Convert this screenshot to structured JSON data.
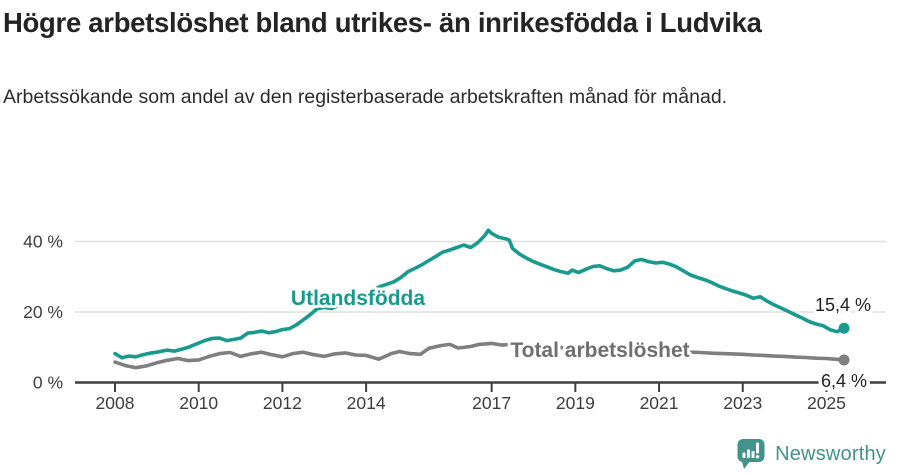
{
  "header": {
    "title": "Högre arbetslöshet bland utrikes- än inrikesfödda i Ludvika",
    "subtitle": "Arbetssökande som andel av den registerbaserade arbetskraften månad för månad."
  },
  "footer": {
    "brand": "Newsworthy",
    "logo_icon": "bar-chart-speech-bubble-icon",
    "brand_color": "#42938c"
  },
  "colors": {
    "foreign_born_line": "#189b8e",
    "total_line": "#7f7f7f",
    "total_label_text": "#6f6f6f",
    "axis": "#3f3f3f",
    "axis_text": "#3d3d3d",
    "gridline": "#e0e0e0",
    "end_label_text": "#1f1f1f"
  },
  "chart_data": {
    "type": "line",
    "title": "Högre arbetslöshet bland utrikes- än inrikesfödda i Ludvika",
    "subtitle": "Arbetssökande som andel av den registerbaserade arbetskraften månad för månad.",
    "unit": "%",
    "x_axis": {
      "range": [
        2007.75,
        2025.6
      ],
      "ticks": [
        2008,
        2010,
        2012,
        2014,
        2017,
        2019,
        2021,
        2023,
        2025
      ],
      "tick_labels": [
        "2008",
        "2010",
        "2012",
        "2014",
        "2017",
        "2019",
        "2021",
        "2023",
        "2025"
      ]
    },
    "y_axis": {
      "range": [
        0,
        44
      ],
      "ticks": [
        0,
        20,
        40
      ],
      "tick_labels": [
        "0 %",
        "20 %",
        "40 %"
      ],
      "grid": true
    },
    "legend_position": "inline-labels",
    "series": [
      {
        "name": "Utlandsfödda",
        "color": "#189b8e",
        "end_value": 15.4,
        "end_label": "15,4 %",
        "points": [
          [
            2008.0,
            8.2
          ],
          [
            2008.17,
            7.0
          ],
          [
            2008.33,
            7.5
          ],
          [
            2008.5,
            7.3
          ],
          [
            2008.67,
            7.9
          ],
          [
            2008.83,
            8.3
          ],
          [
            2009.0,
            8.6
          ],
          [
            2009.25,
            9.2
          ],
          [
            2009.42,
            8.9
          ],
          [
            2009.58,
            9.4
          ],
          [
            2009.75,
            10.0
          ],
          [
            2010.0,
            11.2
          ],
          [
            2010.17,
            12.0
          ],
          [
            2010.33,
            12.5
          ],
          [
            2010.5,
            12.6
          ],
          [
            2010.67,
            11.9
          ],
          [
            2010.83,
            12.2
          ],
          [
            2011.0,
            12.6
          ],
          [
            2011.17,
            14.0
          ],
          [
            2011.33,
            14.2
          ],
          [
            2011.5,
            14.6
          ],
          [
            2011.67,
            14.1
          ],
          [
            2011.83,
            14.4
          ],
          [
            2012.0,
            15.0
          ],
          [
            2012.17,
            15.3
          ],
          [
            2012.33,
            16.3
          ],
          [
            2012.5,
            17.8
          ],
          [
            2012.67,
            19.3
          ],
          [
            2012.83,
            20.9
          ],
          [
            2013.0,
            21.3
          ],
          [
            2013.17,
            21.0
          ],
          [
            2013.33,
            21.8
          ],
          [
            2013.5,
            22.8
          ],
          [
            2013.67,
            23.4
          ],
          [
            2013.83,
            24.6
          ],
          [
            2014.0,
            25.4
          ],
          [
            2014.17,
            26.2
          ],
          [
            2014.33,
            27.2
          ],
          [
            2014.5,
            27.9
          ],
          [
            2014.67,
            28.6
          ],
          [
            2014.83,
            29.8
          ],
          [
            2015.0,
            31.4
          ],
          [
            2015.17,
            32.4
          ],
          [
            2015.33,
            33.4
          ],
          [
            2015.5,
            34.6
          ],
          [
            2015.67,
            35.8
          ],
          [
            2015.83,
            37.0
          ],
          [
            2016.0,
            37.6
          ],
          [
            2016.17,
            38.3
          ],
          [
            2016.33,
            39.0
          ],
          [
            2016.5,
            38.3
          ],
          [
            2016.67,
            39.7
          ],
          [
            2016.83,
            41.6
          ],
          [
            2016.92,
            43.2
          ],
          [
            2017.0,
            42.3
          ],
          [
            2017.17,
            41.2
          ],
          [
            2017.33,
            40.8
          ],
          [
            2017.42,
            40.4
          ],
          [
            2017.5,
            38.0
          ],
          [
            2017.67,
            36.4
          ],
          [
            2017.83,
            35.3
          ],
          [
            2018.0,
            34.3
          ],
          [
            2018.17,
            33.5
          ],
          [
            2018.33,
            32.8
          ],
          [
            2018.5,
            32.0
          ],
          [
            2018.67,
            31.4
          ],
          [
            2018.83,
            31.0
          ],
          [
            2018.92,
            31.9
          ],
          [
            2019.08,
            31.2
          ],
          [
            2019.25,
            32.1
          ],
          [
            2019.42,
            32.9
          ],
          [
            2019.58,
            33.1
          ],
          [
            2019.75,
            32.3
          ],
          [
            2019.92,
            31.7
          ],
          [
            2020.08,
            31.9
          ],
          [
            2020.25,
            32.7
          ],
          [
            2020.42,
            34.5
          ],
          [
            2020.58,
            34.9
          ],
          [
            2020.75,
            34.3
          ],
          [
            2020.92,
            33.9
          ],
          [
            2021.08,
            34.1
          ],
          [
            2021.25,
            33.6
          ],
          [
            2021.42,
            32.8
          ],
          [
            2021.58,
            31.7
          ],
          [
            2021.75,
            30.5
          ],
          [
            2021.92,
            29.8
          ],
          [
            2022.08,
            29.2
          ],
          [
            2022.25,
            28.4
          ],
          [
            2022.42,
            27.4
          ],
          [
            2022.58,
            26.7
          ],
          [
            2022.75,
            26.0
          ],
          [
            2022.92,
            25.4
          ],
          [
            2023.08,
            24.8
          ],
          [
            2023.25,
            23.9
          ],
          [
            2023.42,
            24.3
          ],
          [
            2023.58,
            23.1
          ],
          [
            2023.75,
            22.0
          ],
          [
            2023.92,
            21.1
          ],
          [
            2024.08,
            20.2
          ],
          [
            2024.25,
            19.2
          ],
          [
            2024.42,
            18.3
          ],
          [
            2024.58,
            17.3
          ],
          [
            2024.75,
            16.6
          ],
          [
            2024.92,
            16.1
          ],
          [
            2025.08,
            15.0
          ],
          [
            2025.25,
            14.4
          ],
          [
            2025.42,
            15.4
          ]
        ]
      },
      {
        "name": "Total arbetslöshet",
        "color": "#7f7f7f",
        "end_value": 6.4,
        "end_label": "6,4 %",
        "points": [
          [
            2008.0,
            5.8
          ],
          [
            2008.25,
            4.8
          ],
          [
            2008.5,
            4.2
          ],
          [
            2008.75,
            4.7
          ],
          [
            2009.0,
            5.6
          ],
          [
            2009.25,
            6.3
          ],
          [
            2009.5,
            6.8
          ],
          [
            2009.75,
            6.2
          ],
          [
            2010.0,
            6.4
          ],
          [
            2010.25,
            7.4
          ],
          [
            2010.5,
            8.2
          ],
          [
            2010.75,
            8.5
          ],
          [
            2011.0,
            7.4
          ],
          [
            2011.25,
            8.1
          ],
          [
            2011.5,
            8.6
          ],
          [
            2011.75,
            7.9
          ],
          [
            2012.0,
            7.3
          ],
          [
            2012.25,
            8.2
          ],
          [
            2012.5,
            8.6
          ],
          [
            2012.75,
            7.9
          ],
          [
            2013.0,
            7.4
          ],
          [
            2013.25,
            8.1
          ],
          [
            2013.5,
            8.4
          ],
          [
            2013.75,
            7.8
          ],
          [
            2014.0,
            7.7
          ],
          [
            2014.3,
            6.6
          ],
          [
            2014.6,
            8.2
          ],
          [
            2014.8,
            8.8
          ],
          [
            2015.05,
            8.2
          ],
          [
            2015.3,
            8.0
          ],
          [
            2015.5,
            9.7
          ],
          [
            2015.8,
            10.5
          ],
          [
            2016.0,
            10.8
          ],
          [
            2016.2,
            9.8
          ],
          [
            2016.5,
            10.2
          ],
          [
            2016.7,
            10.8
          ],
          [
            2017.0,
            11.1
          ],
          [
            2017.25,
            10.6
          ],
          [
            2017.5,
            10.9
          ],
          [
            2017.75,
            10.4
          ],
          [
            2018.0,
            10.2
          ],
          [
            2018.25,
            10.5
          ],
          [
            2018.5,
            10.1
          ],
          [
            2018.75,
            9.8
          ],
          [
            2019.0,
            9.6
          ],
          [
            2019.25,
            9.8
          ],
          [
            2019.5,
            9.5
          ],
          [
            2019.75,
            9.3
          ],
          [
            2020.0,
            9.5
          ],
          [
            2020.25,
            10.1
          ],
          [
            2020.5,
            10.3
          ],
          [
            2020.75,
            9.9
          ],
          [
            2021.0,
            9.5
          ],
          [
            2021.25,
            9.2
          ],
          [
            2021.5,
            8.9
          ],
          [
            2021.75,
            8.6
          ],
          [
            2022.0,
            8.5
          ],
          [
            2022.25,
            8.3
          ],
          [
            2022.5,
            8.2
          ],
          [
            2022.75,
            8.1
          ],
          [
            2023.0,
            8.0
          ],
          [
            2023.25,
            7.8
          ],
          [
            2023.5,
            7.7
          ],
          [
            2023.75,
            7.5
          ],
          [
            2024.0,
            7.4
          ],
          [
            2024.25,
            7.2
          ],
          [
            2024.5,
            7.1
          ],
          [
            2024.75,
            6.9
          ],
          [
            2025.0,
            6.8
          ],
          [
            2025.2,
            6.6
          ],
          [
            2025.42,
            6.4
          ]
        ]
      }
    ]
  }
}
